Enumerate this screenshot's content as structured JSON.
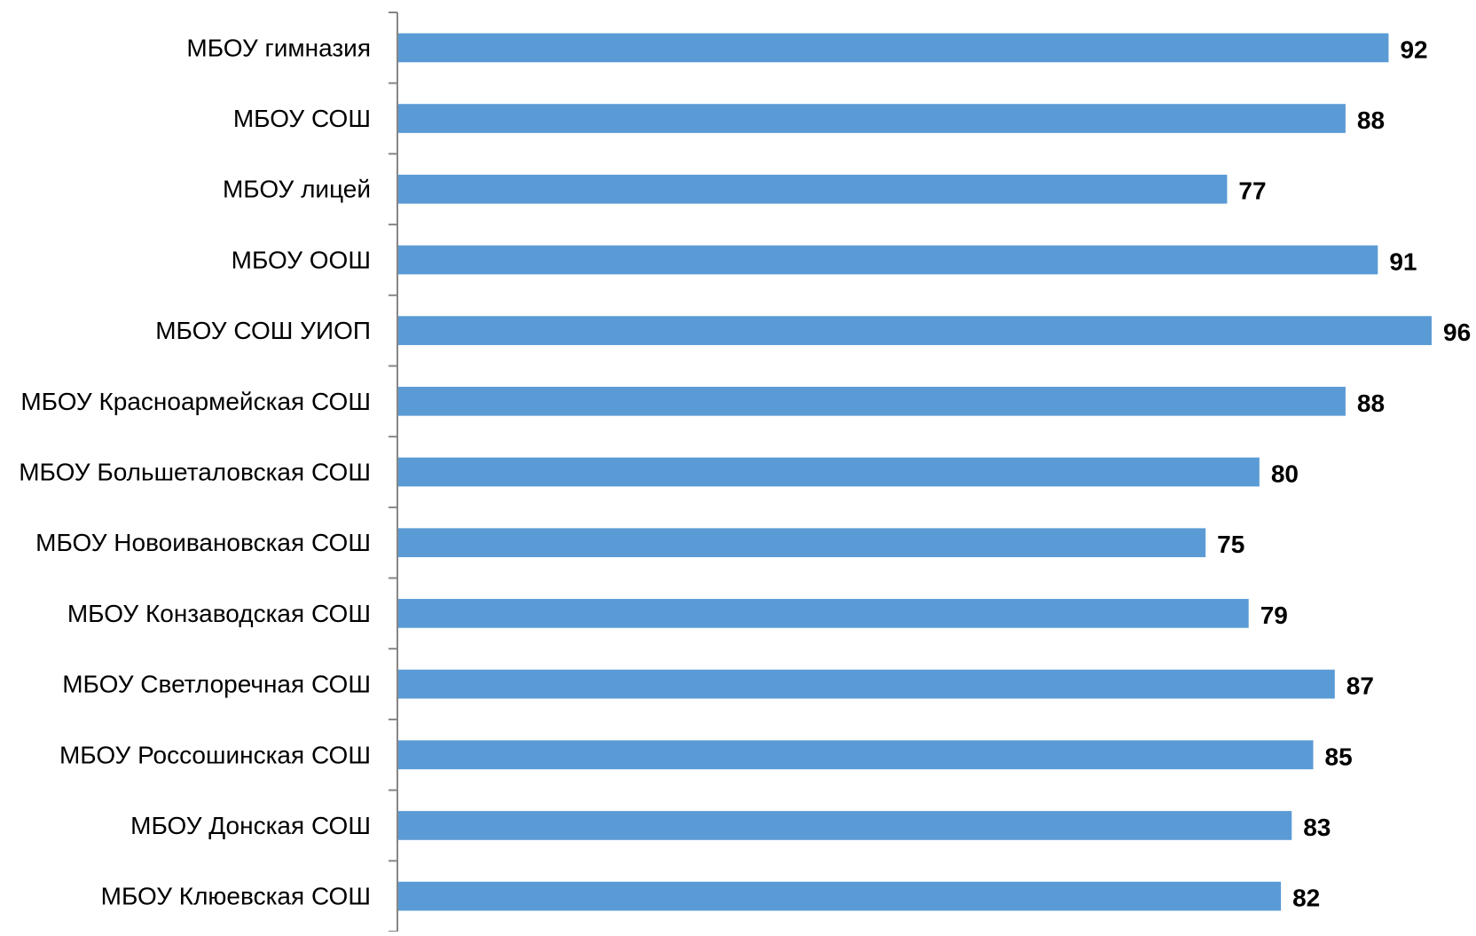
{
  "chart_data": {
    "type": "bar",
    "orientation": "horizontal",
    "categories": [
      "МБОУ гимназия",
      "МБОУ СОШ",
      "МБОУ лицей",
      "МБОУ ООШ",
      "МБОУ СОШ УИОП",
      "МБОУ Красноармейская СОШ",
      "МБОУ Большеталовская СОШ",
      "МБОУ Новоивановская СОШ",
      "МБОУ Конзаводская СОШ",
      "МБОУ Светлоречная СОШ",
      "МБОУ Россошинская СОШ",
      "МБОУ Донская СОШ",
      "МБОУ Клюевская СОШ"
    ],
    "series": [
      {
        "values": [
          92,
          88,
          77,
          91,
          96,
          88,
          80,
          75,
          79,
          87,
          85,
          83,
          82
        ],
        "color": "#5B9BD5"
      }
    ],
    "value_labels": [
      "92",
      "88",
      "77",
      "91",
      "96",
      "88",
      "80",
      "75",
      "79",
      "87",
      "85",
      "83",
      "82"
    ],
    "xlim": [
      0,
      96
    ],
    "title": "",
    "xlabel": "",
    "ylabel": "",
    "grid": false,
    "legend": "none"
  }
}
